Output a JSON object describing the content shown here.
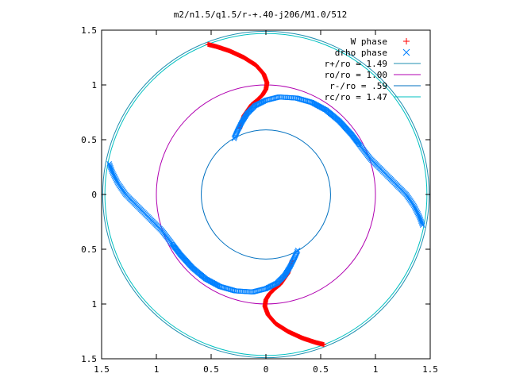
{
  "chart_data": {
    "type": "scatter",
    "title": "m2/n1.5/q1.5/r-+.40-j206/M1.0/512",
    "xlabel": "",
    "ylabel": "",
    "xlim": [
      -1.5,
      1.5
    ],
    "ylim": [
      -1.5,
      1.5
    ],
    "x_ticks": [
      -1.5,
      -1,
      -0.5,
      0,
      0.5,
      1,
      1.5
    ],
    "x_tick_labels": [
      "1.5",
      "1",
      "0.5",
      "0",
      "0.5",
      "1",
      "1.5"
    ],
    "y_ticks": [
      1.5,
      1,
      0.5,
      0,
      -0.5,
      -1,
      -1.5
    ],
    "y_tick_labels": [
      "1.5",
      "1",
      "0.5",
      "0",
      "0.5",
      "1",
      "1.5"
    ],
    "grid": false,
    "legend_position": "top-right",
    "legend": [
      {
        "label": "W phase",
        "marker": "+",
        "color": "#ff0000"
      },
      {
        "label": "drho phase",
        "marker": "x",
        "color": "#0080ff"
      },
      {
        "label": "r+/ro = 1.49",
        "line": true,
        "color": "#1f8fb0"
      },
      {
        "label": "ro/ro = 1.00",
        "line": true,
        "color": "#b000b0"
      },
      {
        "label": "r-/ro = .59",
        "line": true,
        "color": "#0070c0"
      },
      {
        "label": "rc/ro = 1.47",
        "line": true,
        "color": "#00c0c0"
      }
    ],
    "circles": [
      {
        "name": "r+/ro",
        "r": 1.49,
        "color": "#1f8fb0"
      },
      {
        "name": "ro/ro",
        "r": 1.0,
        "color": "#b000b0"
      },
      {
        "name": "r-/ro",
        "r": 0.59,
        "color": "#0070c0"
      },
      {
        "name": "rc/ro",
        "r": 1.47,
        "color": "#00c0c0"
      }
    ],
    "series": [
      {
        "name": "W phase",
        "color": "#ff0000",
        "marker": "+",
        "arms": [
          {
            "points": [
              [
                0.53,
                -1.37
              ],
              [
                0.45,
                -1.35
              ],
              [
                0.33,
                -1.31
              ],
              [
                0.2,
                -1.25
              ],
              [
                0.09,
                -1.18
              ],
              [
                0.02,
                -1.1
              ],
              [
                -0.01,
                -1.02
              ],
              [
                0.0,
                -0.96
              ],
              [
                0.03,
                -0.91
              ],
              [
                0.08,
                -0.86
              ],
              [
                0.13,
                -0.82
              ],
              [
                0.2,
                -0.72
              ],
              [
                0.24,
                -0.6
              ]
            ]
          },
          {
            "points": [
              [
                -0.53,
                1.37
              ],
              [
                -0.45,
                1.35
              ],
              [
                -0.33,
                1.31
              ],
              [
                -0.2,
                1.25
              ],
              [
                -0.09,
                1.18
              ],
              [
                -0.02,
                1.1
              ],
              [
                0.01,
                1.02
              ],
              [
                0.0,
                0.96
              ],
              [
                -0.03,
                0.91
              ],
              [
                -0.08,
                0.86
              ],
              [
                -0.13,
                0.82
              ],
              [
                -0.2,
                0.72
              ],
              [
                -0.24,
                0.6
              ]
            ]
          }
        ]
      },
      {
        "name": "drho phase",
        "color": "#0080ff",
        "marker": "x",
        "arms": [
          {
            "points": [
              [
                -0.29,
                0.51
              ],
              [
                -0.26,
                0.58
              ],
              [
                -0.22,
                0.66
              ],
              [
                -0.17,
                0.74
              ],
              [
                -0.1,
                0.81
              ],
              [
                0.0,
                0.86
              ],
              [
                0.12,
                0.89
              ],
              [
                0.28,
                0.88
              ],
              [
                0.42,
                0.84
              ],
              [
                0.55,
                0.77
              ],
              [
                0.67,
                0.67
              ],
              [
                0.78,
                0.55
              ],
              [
                0.88,
                0.42
              ],
              [
                0.95,
                0.33
              ],
              [
                1.05,
                0.23
              ],
              [
                1.18,
                0.1
              ],
              [
                1.28,
                0.0
              ],
              [
                1.35,
                -0.1
              ],
              [
                1.4,
                -0.2
              ],
              [
                1.43,
                -0.28
              ]
            ]
          },
          {
            "points": [
              [
                0.29,
                -0.51
              ],
              [
                0.26,
                -0.58
              ],
              [
                0.22,
                -0.66
              ],
              [
                0.17,
                -0.74
              ],
              [
                0.1,
                -0.81
              ],
              [
                0.0,
                -0.86
              ],
              [
                -0.12,
                -0.89
              ],
              [
                -0.28,
                -0.88
              ],
              [
                -0.42,
                -0.84
              ],
              [
                -0.55,
                -0.77
              ],
              [
                -0.67,
                -0.67
              ],
              [
                -0.78,
                -0.55
              ],
              [
                -0.88,
                -0.42
              ],
              [
                -0.95,
                -0.33
              ],
              [
                -1.05,
                -0.23
              ],
              [
                -1.18,
                -0.1
              ],
              [
                -1.28,
                0.0
              ],
              [
                -1.35,
                0.1
              ],
              [
                -1.4,
                0.2
              ],
              [
                -1.43,
                0.28
              ]
            ]
          }
        ]
      }
    ]
  }
}
